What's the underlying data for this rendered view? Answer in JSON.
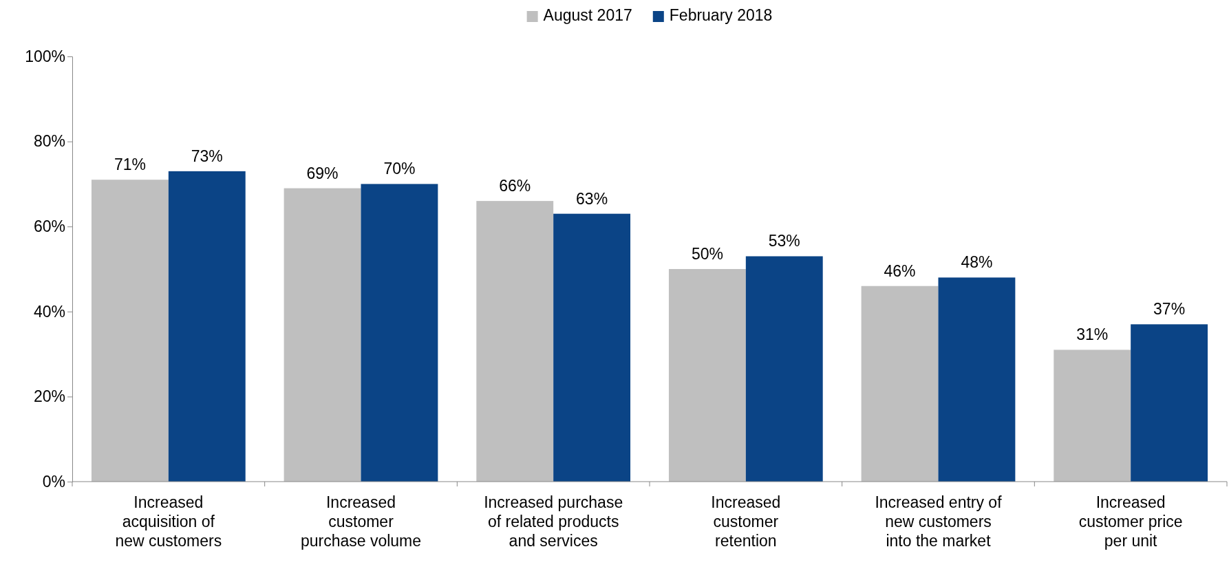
{
  "chart_data": {
    "type": "bar",
    "categories": [
      "Increased\nacquisition of\nnew customers",
      "Increased\ncustomer\npurchase volume",
      "Increased purchase\nof related products\nand services",
      "Increased\ncustomer\nretention",
      "Increased entry of\nnew customers\ninto the market",
      "Increased\ncustomer price\nper unit"
    ],
    "series": [
      {
        "name": "August 2017",
        "color": "#bfbfbf",
        "values": [
          71,
          69,
          66,
          50,
          46,
          31
        ]
      },
      {
        "name": "February 2018",
        "color": "#0b4486",
        "values": [
          73,
          70,
          63,
          53,
          48,
          37
        ]
      }
    ],
    "ylim": [
      0,
      100
    ],
    "yticks": [
      {
        "value": 0,
        "label": "0%"
      },
      {
        "value": 20,
        "label": "20%"
      },
      {
        "value": 40,
        "label": "40%"
      },
      {
        "value": 60,
        "label": "60%"
      },
      {
        "value": 80,
        "label": "80%"
      },
      {
        "value": 100,
        "label": "100%"
      }
    ],
    "value_labels": [
      [
        "71%",
        "69%",
        "66%",
        "50%",
        "46%",
        "31%"
      ],
      [
        "73%",
        "70%",
        "63%",
        "53%",
        "48%",
        "37%"
      ]
    ],
    "legend": "top",
    "grid": false
  }
}
